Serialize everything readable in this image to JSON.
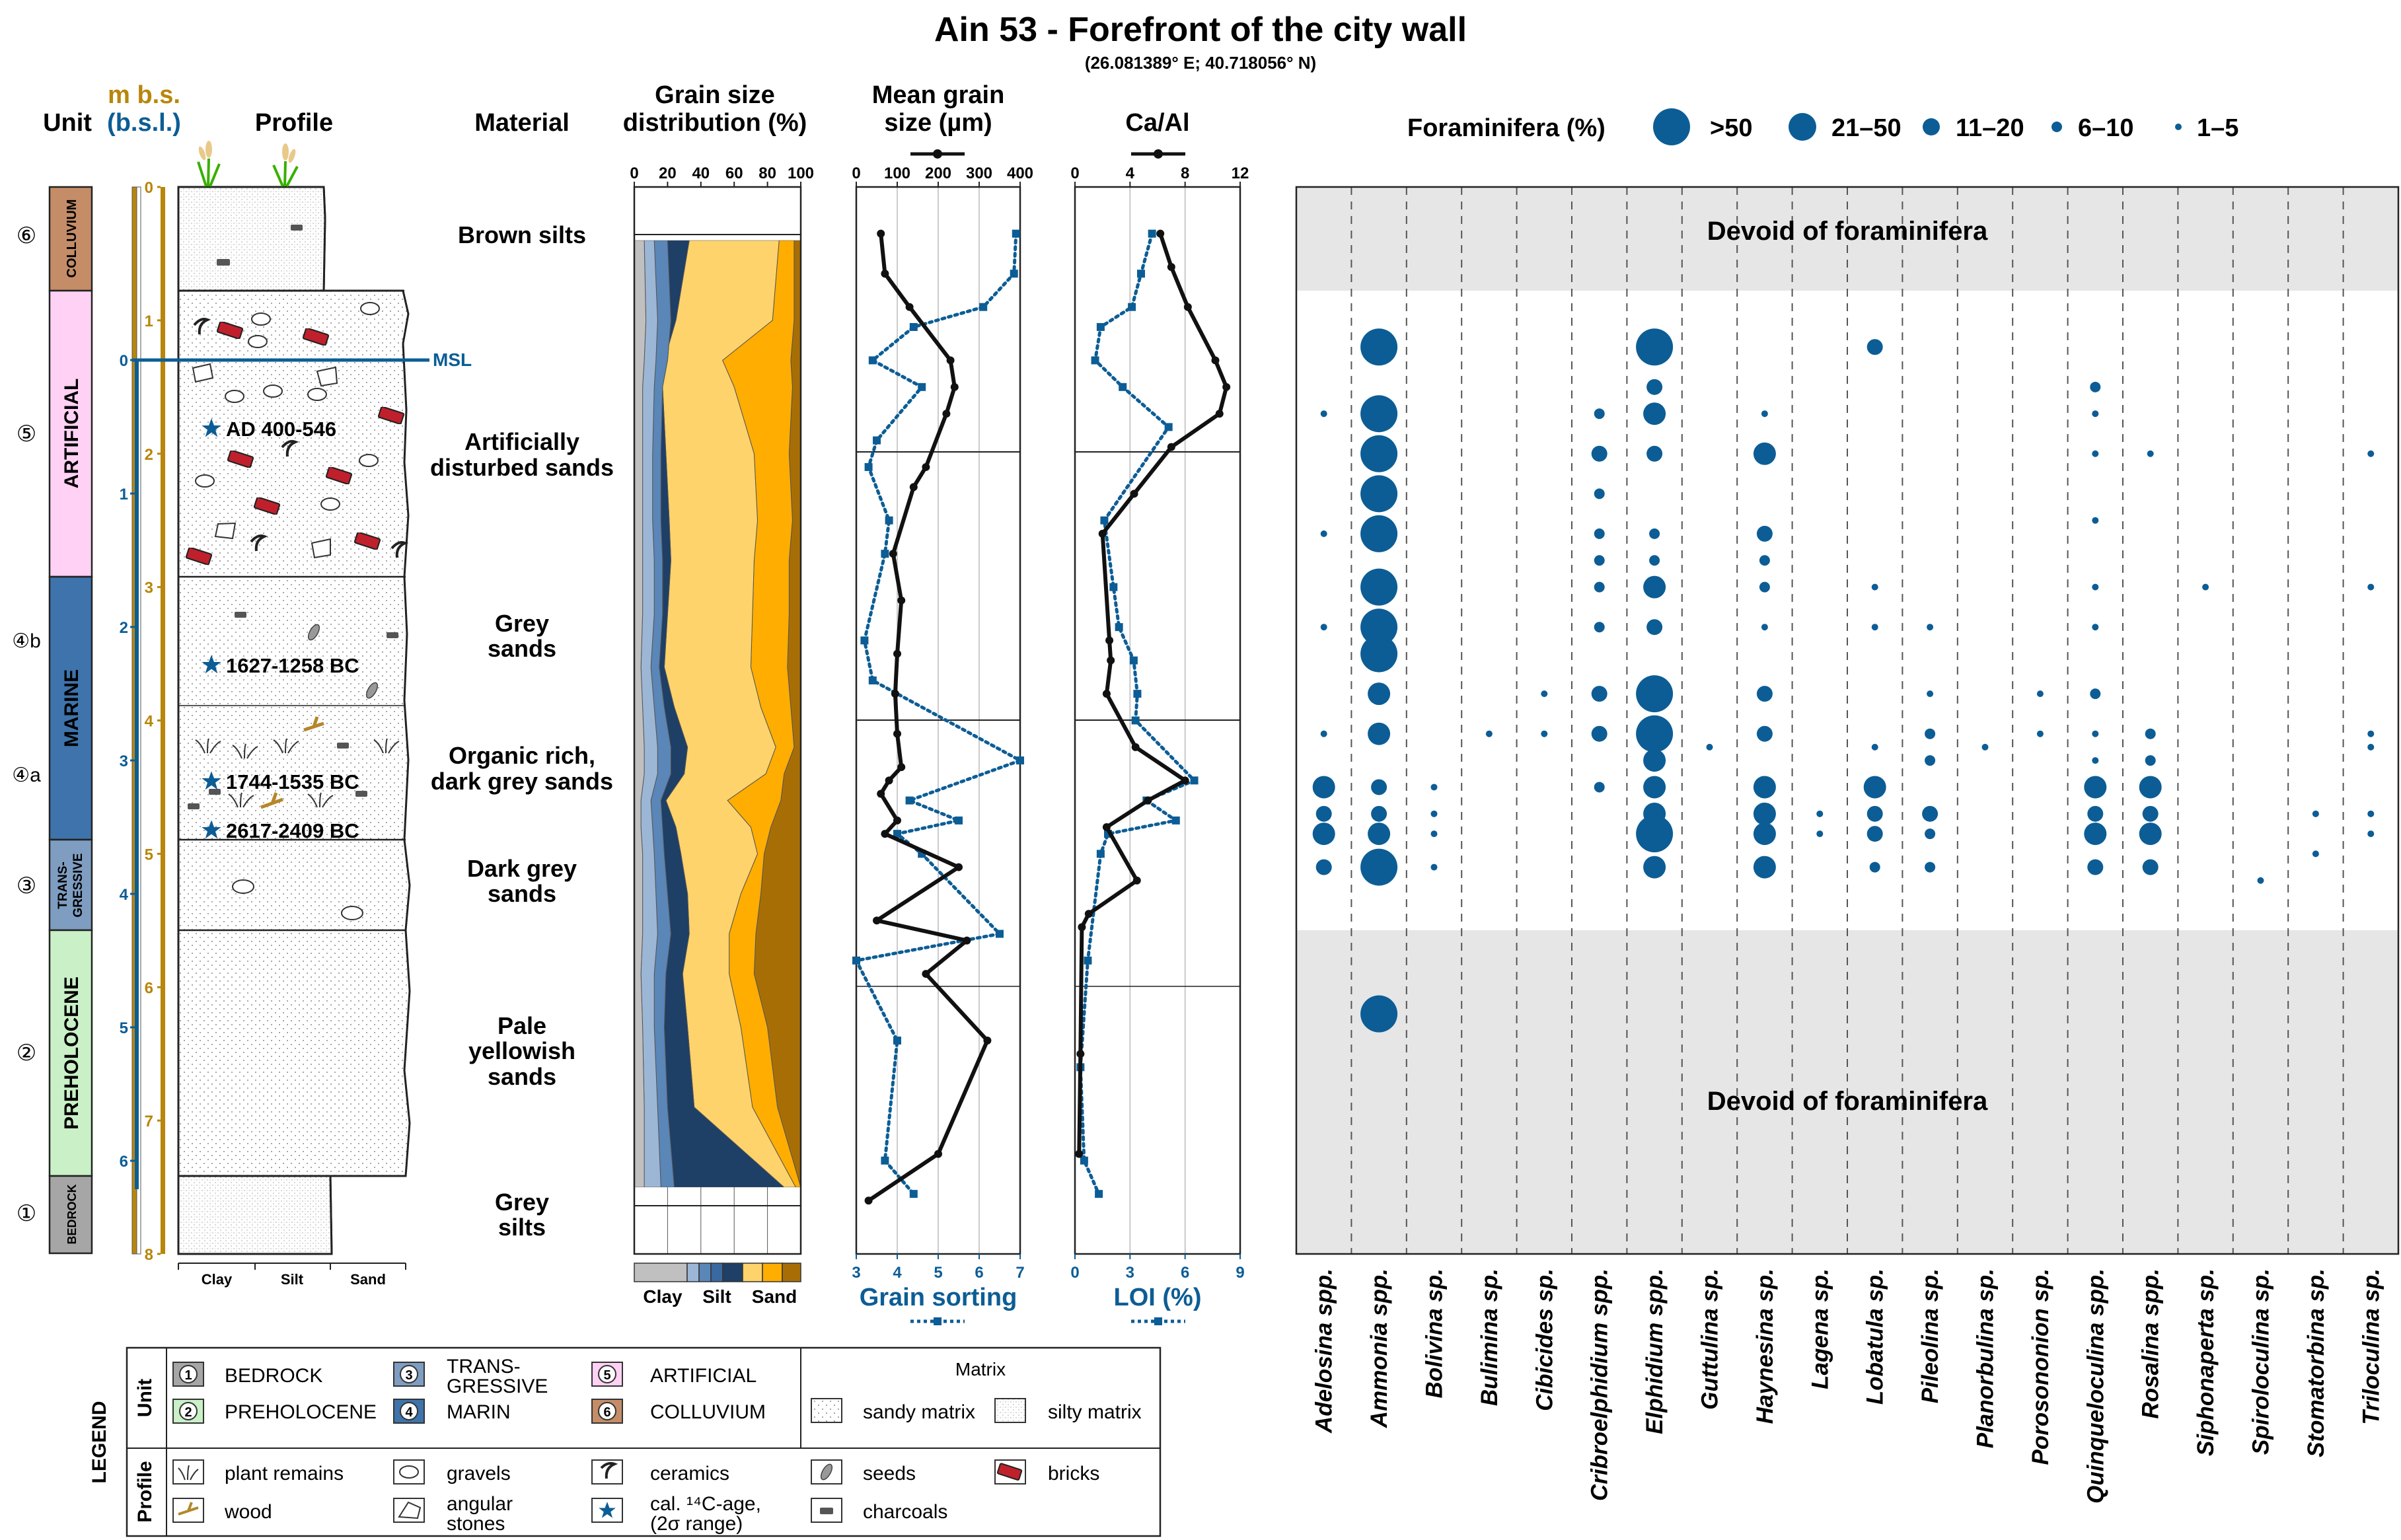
{
  "title": "Ain 53 - Forefront of the city wall",
  "coordinates": "(26.081389° E; 40.718056° N)",
  "colors": {
    "accent_blue": "#0c5d95",
    "depth_gold": "#b8860b",
    "bedrock": "#a6a6a6",
    "preholocene": "#c9f0c6",
    "transgressive": "#7e9dc1",
    "marine": "#3e73ac",
    "artificial": "#ffd1f4",
    "colluvium": "#c48d68",
    "clay_fill": "#c0c0c0",
    "sand_light": "#ffd36b",
    "sand_mid": "#ffad00",
    "sand_dark": "#a86e06",
    "silt_dark": "#1e3f66",
    "devoid_fill": "#e6e6e6"
  },
  "headers": {
    "unit": "Unit",
    "depth_m": "m b.s.",
    "depth_bsl": "(b.s.l.)",
    "profile": "Profile",
    "material": "Material",
    "grain_size_1": "Grain size",
    "grain_size_2": "distribution (%)",
    "mean_grain_1": "Mean grain",
    "mean_grain_2": "size (µm)",
    "caal": "Ca/Al",
    "foraminifera": "Foraminifera (%)"
  },
  "msl_label": "MSL",
  "depth_ticks_mbs": [
    "0",
    "1",
    "2",
    "3",
    "4",
    "5",
    "6",
    "7",
    "8"
  ],
  "depth_ticks_bsl": [
    "0",
    "1",
    "2",
    "3",
    "4",
    "5",
    "6"
  ],
  "units": [
    {
      "num": "⑥",
      "name": "COLLUVIUM"
    },
    {
      "num": "⑤",
      "name": "ARTIFICIAL"
    },
    {
      "num": "④b",
      "name": "MARINE"
    },
    {
      "num": "④a",
      "name": ""
    },
    {
      "num": "③",
      "name": "TRANS-GRESSIVE"
    },
    {
      "num": "②",
      "name": "PREHOLOCENE"
    },
    {
      "num": "①",
      "name": "BEDROCK"
    }
  ],
  "unit_labels": {
    "colluvium": "COLLUVIUM",
    "artificial": "ARTIFICIAL",
    "marine": "MARINE",
    "trans_1": "TRANS-",
    "trans_2": "GRESSIVE",
    "preholocene": "PREHOLOCENE",
    "bedrock": "BEDROCK",
    "n6": "⑥",
    "n5": "⑤",
    "n4b": "④b",
    "n4a": "④a",
    "n3": "③",
    "n2": "②",
    "n1": "①"
  },
  "dates": {
    "d1": "AD 400-546",
    "d2": "1627-1258 BC",
    "d3": "1744-1535 BC",
    "d4": "2617-2409 BC"
  },
  "materials": {
    "m1": "Brown silts",
    "m2a": "Artificially",
    "m2b": "disturbed sands",
    "m3a": "Grey",
    "m3b": "sands",
    "m4a": "Organic rich,",
    "m4b": "dark grey sands",
    "m5a": "Dark grey",
    "m5b": "sands",
    "m6a": "Pale",
    "m6b": "yellowish",
    "m6c": "sands",
    "m7a": "Grey",
    "m7b": "silts"
  },
  "profile_axis": {
    "clay": "Clay",
    "silt": "Silt",
    "sand": "Sand"
  },
  "grain_axis": {
    "ticks": [
      "0",
      "20",
      "40",
      "60",
      "80",
      "100"
    ],
    "clay": "Clay",
    "silt": "Silt",
    "sand": "Sand"
  },
  "mean_axis": {
    "ticks": [
      "0",
      "100",
      "200",
      "300",
      "400"
    ],
    "bottom_ticks": [
      "3",
      "4",
      "5",
      "6",
      "7"
    ],
    "bottom_label": "Grain sorting"
  },
  "caal_axis": {
    "ticks": [
      "0",
      "4",
      "8",
      "12"
    ],
    "bottom_ticks": [
      "0",
      "3",
      "6",
      "9"
    ],
    "bottom_label": "LOI (%)"
  },
  "foram_legend": [
    ">50",
    "21–50",
    "11–20",
    "6–10",
    "1–5"
  ],
  "devoid_text": "Devoid of foraminifera",
  "species": [
    "Adelosina spp.",
    "Ammonia spp.",
    "Bolivina sp.",
    "Bulimina sp.",
    "Cibicides sp.",
    "Cribroelphidium spp.",
    "Elphidium spp.",
    "Guttulina sp.",
    "Haynesina sp.",
    "Lagena sp.",
    "Lobatula sp.",
    "Pileolina sp.",
    "Planorbulina sp.",
    "Porosononion sp.",
    "Quinqueloculina spp.",
    "Rosalina spp.",
    "Siphonaperta sp.",
    "Spiroloculina sp.",
    "Stomatorbina sp.",
    "Triloculina sp."
  ],
  "legend": {
    "title": "LEGEND",
    "unit_hdr": "Unit",
    "profile_hdr": "Profile",
    "u1": "BEDROCK",
    "u2": "PREHOLOCENE",
    "u3a": "TRANS-",
    "u3b": "GRESSIVE",
    "u4": "MARIN",
    "u5": "ARTIFICIAL",
    "u6": "COLLUVIUM",
    "n1": "1",
    "n2": "2",
    "n3": "3",
    "n4": "4",
    "n5": "5",
    "n6": "6",
    "matrix_hdr": "Matrix",
    "sandy": "sandy matrix",
    "silty": "silty matrix",
    "plant": "plant remains",
    "wood": "wood",
    "gravels": "gravels",
    "angular1": "angular",
    "angular2": "stones",
    "ceramics": "ceramics",
    "cal1": "cal. ¹⁴C-age,",
    "cal2": "(2σ range)",
    "seeds": "seeds",
    "charcoals": "charcoals",
    "bricks": "bricks"
  },
  "chart_data": [
    {
      "type": "area",
      "title": "Grain size distribution (%)",
      "xlabel": "Clay / Silt / Sand",
      "xlim": [
        0,
        100
      ],
      "depth_m": [
        0.4,
        1.0,
        1.3,
        1.5,
        2.0,
        2.5,
        2.8,
        3.2,
        3.6,
        3.9,
        4.2,
        4.4,
        4.6,
        4.8,
        5.0,
        5.3,
        5.6,
        5.9,
        6.3,
        6.9,
        7.5
      ],
      "series": [
        {
          "name": "clay",
          "values": [
            6,
            7,
            6,
            5,
            5,
            5,
            5,
            5,
            4,
            5,
            6,
            6,
            4,
            4,
            5,
            5,
            5,
            4,
            5,
            6,
            6
          ]
        },
        {
          "name": "silt (fine)",
          "values": [
            12,
            14,
            13,
            12,
            11,
            11,
            12,
            12,
            10,
            12,
            14,
            14,
            10,
            11,
            12,
            13,
            14,
            12,
            12,
            14,
            16
          ]
        },
        {
          "name": "silt (medium)",
          "values": [
            20,
            22,
            20,
            17,
            16,
            16,
            17,
            17,
            15,
            18,
            22,
            22,
            16,
            17,
            18,
            20,
            22,
            19,
            18,
            20,
            24
          ]
        },
        {
          "name": "silt (coarse)",
          "values": [
            33,
            25,
            18,
            17,
            19,
            21,
            22,
            20,
            18,
            24,
            32,
            30,
            19,
            25,
            28,
            32,
            33,
            29,
            32,
            36,
            90
          ]
        },
        {
          "name": "sand (fine)",
          "values": [
            87,
            83,
            53,
            60,
            72,
            74,
            72,
            71,
            70,
            76,
            85,
            79,
            56,
            70,
            74,
            64,
            57,
            57,
            64,
            71,
            97
          ]
        },
        {
          "name": "sand (medium)",
          "values": [
            96,
            96,
            94,
            95,
            93,
            95,
            93,
            93,
            92,
            94,
            96,
            90,
            88,
            82,
            78,
            76,
            73,
            72,
            80,
            86,
            100
          ]
        },
        {
          "name": "sand (coarse)",
          "values": [
            100,
            100,
            100,
            100,
            100,
            100,
            100,
            100,
            100,
            100,
            100,
            100,
            100,
            100,
            100,
            100,
            100,
            100,
            100,
            100,
            100
          ]
        }
      ]
    },
    {
      "type": "line",
      "title": "Mean grain size (µm)",
      "xlim": [
        0,
        400
      ],
      "series": [
        {
          "name": "mean grain size",
          "depth_m": [
            0.35,
            0.65,
            0.9,
            1.3,
            1.5,
            1.7,
            2.1,
            2.25,
            2.75,
            3.1,
            3.5,
            3.8,
            4.1,
            4.35,
            4.45,
            4.55,
            4.75,
            4.85,
            5.1,
            5.5,
            5.65,
            5.9,
            6.4,
            7.25,
            7.6
          ],
          "values": [
            60,
            70,
            130,
            230,
            240,
            220,
            170,
            140,
            90,
            110,
            100,
            95,
            100,
            110,
            80,
            60,
            100,
            70,
            250,
            50,
            270,
            170,
            320,
            200,
            30
          ]
        }
      ]
    },
    {
      "type": "line",
      "title": "Grain sorting",
      "xlim": [
        3,
        7
      ],
      "series": [
        {
          "name": "grain sorting",
          "depth_m": [
            0.35,
            0.65,
            0.9,
            1.05,
            1.3,
            1.5,
            1.9,
            2.1,
            2.5,
            2.75,
            3.4,
            3.7,
            4.3,
            4.6,
            4.75,
            4.85,
            5.0,
            5.6,
            5.8,
            6.4,
            7.3,
            7.55
          ],
          "values": [
            6.9,
            6.85,
            6.1,
            4.4,
            3.4,
            4.6,
            3.5,
            3.3,
            3.8,
            3.7,
            3.2,
            3.4,
            7.0,
            4.3,
            5.5,
            4.0,
            4.6,
            6.5,
            3.0,
            4.0,
            3.7,
            4.4
          ]
        }
      ]
    },
    {
      "type": "line",
      "title": "Ca/Al",
      "xlim": [
        0,
        12
      ],
      "series": [
        {
          "name": "Ca/Al",
          "depth_m": [
            0.35,
            0.6,
            0.9,
            1.3,
            1.5,
            1.7,
            1.95,
            2.3,
            2.6,
            3.4,
            3.55,
            3.8,
            4.2,
            4.45,
            4.6,
            4.8,
            5.2,
            5.45,
            5.55,
            6.5,
            7.25
          ],
          "values": [
            6.2,
            7.0,
            8.2,
            10.2,
            11.0,
            10.5,
            7.0,
            4.3,
            2.0,
            2.5,
            2.6,
            2.3,
            4.4,
            8.0,
            5.3,
            2.3,
            4.5,
            1.0,
            0.5,
            0.4,
            0.3
          ]
        }
      ]
    },
    {
      "type": "line",
      "title": "LOI (%)",
      "xlim": [
        0,
        9
      ],
      "series": [
        {
          "name": "LOI",
          "depth_m": [
            0.35,
            0.65,
            0.9,
            1.05,
            1.3,
            1.5,
            1.8,
            2.5,
            3.0,
            3.3,
            3.55,
            3.8,
            4.0,
            4.45,
            4.6,
            4.75,
            4.85,
            5.0,
            5.8,
            6.6,
            7.3,
            7.55
          ],
          "values": [
            4.2,
            3.6,
            3.1,
            1.4,
            1.1,
            2.6,
            5.1,
            1.6,
            2.1,
            2.4,
            3.2,
            3.4,
            3.3,
            6.5,
            3.9,
            5.5,
            1.8,
            1.4,
            0.7,
            0.3,
            0.5,
            1.3
          ]
        }
      ]
    },
    {
      "type": "scatter",
      "title": "Foraminifera (%)",
      "size_classes": [
        ">50",
        "21–50",
        "11–20",
        "6–10",
        "1–5"
      ],
      "sample_depths_m": [
        1.2,
        1.7,
        2.0,
        2.3,
        2.6,
        3.0,
        3.3,
        3.5,
        3.8,
        4.1,
        4.5,
        4.7,
        4.85,
        5.1,
        5.3,
        5.5,
        5.7,
        6.2
      ],
      "occurrences": [
        {
          "species": "Adelosina spp.",
          "depths_m": [
            1.7,
            2.6,
            3.3,
            4.1,
            4.5,
            4.7,
            4.85,
            5.1
          ],
          "classes": [
            "1–5",
            "1–5",
            "1–5",
            "1–5",
            "21–50",
            "11–20",
            "21–50",
            "11–20"
          ]
        },
        {
          "species": "Ammonia spp.",
          "depths_m": [
            1.2,
            1.7,
            2.0,
            2.3,
            2.6,
            3.0,
            3.3,
            3.5,
            3.8,
            4.1,
            4.5,
            4.7,
            4.85,
            5.1,
            6.2
          ],
          "classes": [
            ">50",
            ">50",
            ">50",
            ">50",
            ">50",
            ">50",
            ">50",
            ">50",
            "21–50",
            "21–50",
            "11–20",
            "11–20",
            "21–50",
            ">50",
            ">50"
          ]
        },
        {
          "species": "Bolivina sp.",
          "depths_m": [
            4.5,
            4.7,
            4.85,
            5.1
          ],
          "classes": [
            "1–5",
            "1–5",
            "1–5",
            "1–5"
          ]
        },
        {
          "species": "Bulimina sp.",
          "depths_m": [
            4.1
          ],
          "classes": [
            "1–5"
          ]
        },
        {
          "species": "Cibicides sp.",
          "depths_m": [
            3.8,
            4.1
          ],
          "classes": [
            "1–5",
            "1–5"
          ]
        },
        {
          "species": "Cribroelphidium spp.",
          "depths_m": [
            1.7,
            2.0,
            2.3,
            2.6,
            2.8,
            3.0,
            3.3,
            3.8,
            4.1,
            4.5
          ],
          "classes": [
            "6–10",
            "11–20",
            "6–10",
            "6–10",
            "6–10",
            "6–10",
            "6–10",
            "11–20",
            "11–20",
            "6–10"
          ]
        },
        {
          "species": "Elphidium spp.",
          "depths_m": [
            1.2,
            1.5,
            1.7,
            2.0,
            2.6,
            2.8,
            3.0,
            3.3,
            3.8,
            4.1,
            4.3,
            4.5,
            4.7,
            4.85,
            5.1
          ],
          "classes": [
            ">50",
            "11–20",
            "21–50",
            "11–20",
            "6–10",
            "6–10",
            "21–50",
            "11–20",
            ">50",
            ">50",
            "21–50",
            "21–50",
            "21–50",
            ">50",
            "21–50"
          ]
        },
        {
          "species": "Guttulina sp.",
          "depths_m": [
            4.2
          ],
          "classes": [
            "1–5"
          ]
        },
        {
          "species": "Haynesina sp.",
          "depths_m": [
            1.7,
            2.0,
            2.6,
            2.8,
            3.0,
            3.3,
            3.8,
            4.1,
            4.5,
            4.7,
            4.85,
            5.1
          ],
          "classes": [
            "1–5",
            "21–50",
            "11–20",
            "6–10",
            "6–10",
            "1–5",
            "11–20",
            "11–20",
            "21–50",
            "21–50",
            "21–50",
            "21–50"
          ]
        },
        {
          "species": "Lagena sp.",
          "depths_m": [
            4.7,
            4.85
          ],
          "classes": [
            "1–5",
            "1–5"
          ]
        },
        {
          "species": "Lobatula sp.",
          "depths_m": [
            1.2,
            3.0,
            3.3,
            4.2,
            4.5,
            4.7,
            4.85,
            5.1
          ],
          "classes": [
            "11–20",
            "1–5",
            "1–5",
            "1–5",
            "21–50",
            "11–20",
            "11–20",
            "6–10"
          ]
        },
        {
          "species": "Pileolina sp.",
          "depths_m": [
            3.3,
            3.8,
            4.1,
            4.3,
            4.7,
            4.85,
            5.1
          ],
          "classes": [
            "1–5",
            "1–5",
            "6–10",
            "6–10",
            "11–20",
            "6–10",
            "6–10"
          ]
        },
        {
          "species": "Planorbulina sp.",
          "depths_m": [
            4.2
          ],
          "classes": [
            "1–5"
          ]
        },
        {
          "species": "Porosononion sp.",
          "depths_m": [
            3.8,
            4.1
          ],
          "classes": [
            "1–5",
            "1–5"
          ]
        },
        {
          "species": "Quinqueloculina spp.",
          "depths_m": [
            1.5,
            1.7,
            2.0,
            2.5,
            3.0,
            3.3,
            3.8,
            4.1,
            4.3,
            4.5,
            4.7,
            4.85,
            5.1
          ],
          "classes": [
            "6–10",
            "1–5",
            "1–5",
            "1–5",
            "1–5",
            "1–5",
            "6–10",
            "1–5",
            "1–5",
            "21–50",
            "11–20",
            "21–50",
            "11–20"
          ]
        },
        {
          "species": "Rosalina spp.",
          "depths_m": [
            2.0,
            4.1,
            4.3,
            4.5,
            4.7,
            4.85,
            5.1
          ],
          "classes": [
            "1–5",
            "6–10",
            "6–10",
            "21–50",
            "11–20",
            "21–50",
            "11–20"
          ]
        },
        {
          "species": "Siphonaperta sp.",
          "depths_m": [
            3.0
          ],
          "classes": [
            "1–5"
          ]
        },
        {
          "species": "Spiroloculina sp.",
          "depths_m": [
            5.2
          ],
          "classes": [
            "1–5"
          ]
        },
        {
          "species": "Stomatorbina sp.",
          "depths_m": [
            4.7,
            5.0
          ],
          "classes": [
            "1–5",
            "1–5"
          ]
        },
        {
          "species": "Triloculina sp.",
          "depths_m": [
            2.0,
            3.0,
            4.1,
            4.2,
            4.7,
            4.85
          ],
          "classes": [
            "1–5",
            "1–5",
            "1–5",
            "1–5",
            "1–5",
            "1–5"
          ]
        }
      ]
    }
  ]
}
